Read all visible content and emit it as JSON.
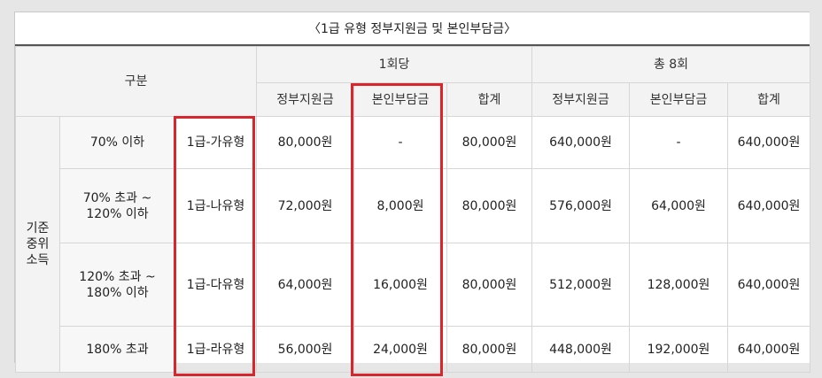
{
  "title": "〈1급 유형 정부지원금 및 본인부담금〉",
  "header": {
    "category": "구분",
    "per_visit": "1회당",
    "total": "총 8회",
    "sub": [
      "정부지원금",
      "본인부담금",
      "합계",
      "정부지원금",
      "본인부담금",
      "합계"
    ]
  },
  "side_label": "기준\n중위\n소득",
  "rows": [
    {
      "range": "70% 이하",
      "type": "1급-가유형",
      "gov1": "80,000원",
      "self1": "-",
      "sum1": "80,000원",
      "gov8": "640,000원",
      "self8": "-",
      "sum8": "640,000원"
    },
    {
      "range": "70% 초과 ~\n120% 이하",
      "type": "1급-나유형",
      "gov1": "72,000원",
      "self1": "8,000원",
      "sum1": "80,000원",
      "gov8": "576,000원",
      "self8": "64,000원",
      "sum8": "640,000원"
    },
    {
      "range": "120% 초과 ~\n180% 이하",
      "type": "1급-다유형",
      "gov1": "64,000원",
      "self1": "16,000원",
      "sum1": "80,000원",
      "gov8": "512,000원",
      "self8": "128,000원",
      "sum8": "640,000원"
    },
    {
      "range": "180% 초과",
      "type": "1급-라유형",
      "gov1": "56,000원",
      "self1": "24,000원",
      "sum1": "80,000원",
      "gov8": "448,000원",
      "self8": "192,000원",
      "sum8": "640,000원"
    }
  ],
  "highlight_color": "#d9252c"
}
